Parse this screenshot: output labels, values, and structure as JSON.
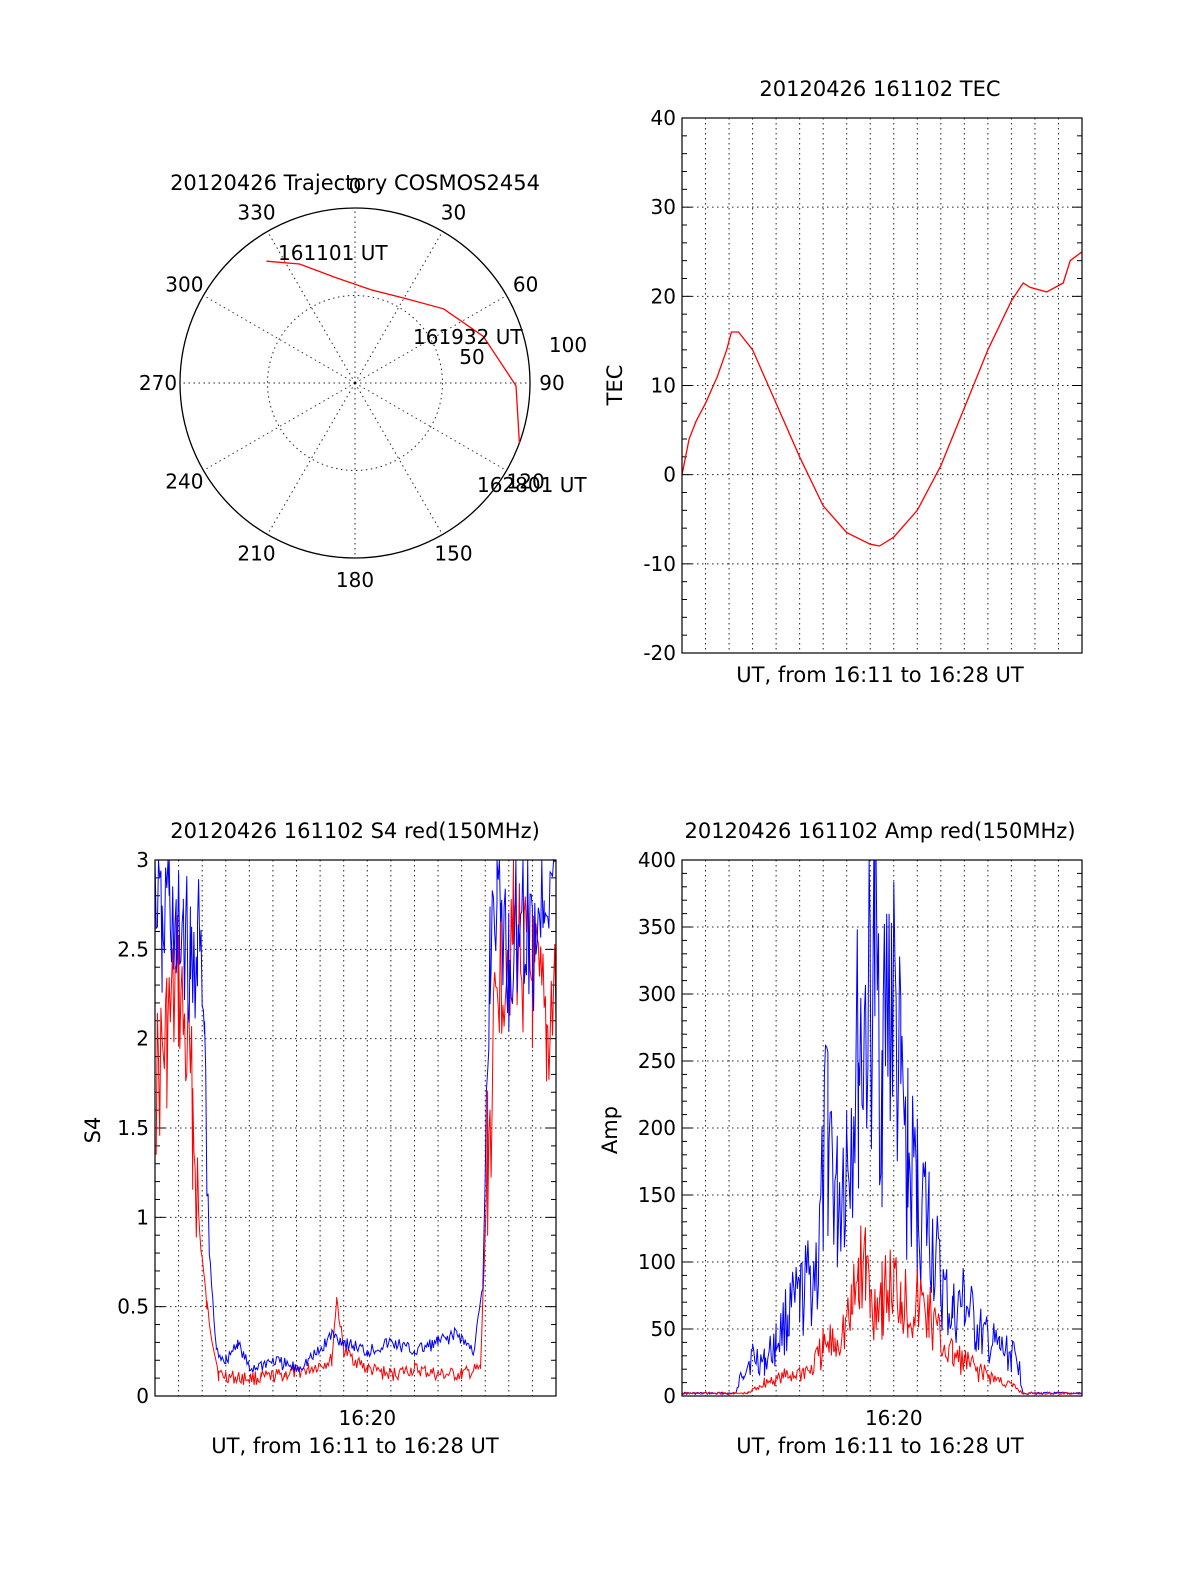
{
  "chart_data": [
    {
      "type": "polar",
      "title": "20120426 Trajectory COSMOS2454",
      "azimuth_labels": [
        "0",
        "30",
        "60",
        "90",
        "120",
        "150",
        "180",
        "210",
        "240",
        "270",
        "300",
        "330"
      ],
      "radial_max": 100,
      "radial_tick_labels": [
        "50",
        "100"
      ],
      "series": [
        {
          "color": "#ff0000",
          "points_az_zenith": [
            [
              -36,
              86
            ],
            [
              -25,
              75
            ],
            [
              -10,
              61
            ],
            [
              10,
              54
            ],
            [
              30,
              56
            ],
            [
              50,
              66
            ],
            [
              70,
              78
            ],
            [
              91,
              92
            ],
            [
              110,
              100
            ]
          ]
        }
      ],
      "annotations": [
        "161101 UT",
        "161932 UT",
        "162801 UT"
      ]
    },
    {
      "type": "line",
      "title": "20120426 161102 TEC",
      "xlabel": "UT, from 16:11 to 16:28 UT",
      "ylabel": "TEC",
      "xlim": [
        0,
        17
      ],
      "ylim": [
        -20,
        40
      ],
      "ytick_labels": [
        "-20",
        "-10",
        "0",
        "10",
        "20",
        "30",
        "40"
      ],
      "grid": true,
      "series": [
        {
          "color": "#ff0000",
          "x": [
            0,
            0.3,
            0.6,
            1.0,
            1.5,
            1.9,
            2.1,
            2.4,
            3.0,
            4.0,
            5.0,
            6.0,
            7.0,
            8.0,
            8.4,
            9.0,
            10.0,
            11.0,
            12.0,
            13.0,
            14.0,
            14.5,
            14.8,
            15.5,
            16.2,
            16.5,
            17.0
          ],
          "y": [
            0,
            4,
            6,
            8,
            11,
            14,
            16,
            16,
            14,
            8,
            2,
            -3.5,
            -6.5,
            -7.8,
            -8,
            -7,
            -4,
            1,
            7.5,
            14,
            19.5,
            21.5,
            21,
            20.5,
            21.5,
            24,
            25
          ]
        }
      ]
    },
    {
      "type": "line",
      "title": "20120426 161102 S4 red(150MHz)",
      "xlabel": "UT, from 16:11 to 16:28 UT",
      "ylabel": "S4",
      "xlim": [
        0,
        17
      ],
      "ylim": [
        0,
        3
      ],
      "xtick_labels": [
        "16:20"
      ],
      "ytick_labels": [
        "0",
        "0.5",
        "1",
        "1.5",
        "2",
        "2.5",
        "3"
      ],
      "grid": true,
      "series": [
        {
          "color": "#ff0000",
          "x": [
            0,
            0.5,
            1.0,
            1.6,
            1.9,
            2.2,
            2.7,
            3.5,
            4.5,
            5.5,
            6.5,
            7.5,
            7.7,
            8.0,
            9.0,
            10.0,
            11.0,
            12.0,
            13.0,
            13.8,
            14.1,
            14.6,
            15.2,
            16.0,
            16.6,
            17.0
          ],
          "y": [
            1.7,
            2.0,
            2.3,
            1.6,
            0.9,
            0.5,
            0.12,
            0.1,
            0.1,
            0.12,
            0.15,
            0.2,
            0.55,
            0.25,
            0.15,
            0.12,
            0.15,
            0.12,
            0.12,
            0.15,
            1.3,
            2.4,
            2.6,
            2.3,
            2.0,
            2.3
          ]
        },
        {
          "color": "#0000ff",
          "x": [
            0,
            0.3,
            0.6,
            0.9,
            1.2,
            1.5,
            1.8,
            2.1,
            2.3,
            2.6,
            3.0,
            3.5,
            4.0,
            5.0,
            6.0,
            7.0,
            7.5,
            8.0,
            9.0,
            10.0,
            11.0,
            12.0,
            12.8,
            13.5,
            13.9,
            14.2,
            14.5,
            15.0,
            15.5,
            16.0,
            16.5,
            17.0
          ],
          "y": [
            3,
            2.5,
            2.9,
            2.4,
            2.7,
            2.3,
            2.6,
            2.0,
            0.8,
            0.25,
            0.2,
            0.3,
            0.15,
            0.2,
            0.15,
            0.25,
            0.35,
            0.3,
            0.25,
            0.3,
            0.25,
            0.3,
            0.35,
            0.25,
            0.6,
            2.5,
            2.9,
            2.4,
            2.8,
            2.5,
            2.9,
            3
          ]
        }
      ]
    },
    {
      "type": "area",
      "title": "20120426 161102 Amp red(150MHz)",
      "xlabel": "UT, from 16:11 to 16:28 UT",
      "ylabel": "Amp",
      "xlim": [
        0,
        17
      ],
      "ylim": [
        0,
        400
      ],
      "xtick_labels": [
        "16:20"
      ],
      "ytick_labels": [
        "0",
        "50",
        "100",
        "150",
        "200",
        "250",
        "300",
        "350",
        "400"
      ],
      "grid": true,
      "series": [
        {
          "color": "#0000ff",
          "x": [
            0,
            2.3,
            2.6,
            3.0,
            3.5,
            4.0,
            4.5,
            5.0,
            5.8,
            6.2,
            6.6,
            7.0,
            7.5,
            8.0,
            8.2,
            8.5,
            8.9,
            9.3,
            9.6,
            10.0,
            10.5,
            11.0,
            11.5,
            12.0,
            12.5,
            13.0,
            13.5,
            14.0,
            14.3,
            14.5,
            17.0
          ],
          "y": [
            2,
            2,
            20,
            30,
            25,
            40,
            60,
            70,
            100,
            210,
            140,
            190,
            250,
            300,
            320,
            250,
            310,
            220,
            170,
            150,
            130,
            80,
            60,
            70,
            50,
            40,
            35,
            30,
            25,
            2,
            2
          ]
        },
        {
          "color": "#ff0000",
          "x": [
            0,
            2.8,
            3.5,
            4.5,
            5.5,
            6.0,
            6.5,
            7.2,
            7.5,
            7.8,
            8.0,
            8.5,
            9.0,
            9.3,
            9.6,
            10.0,
            10.5,
            11.0,
            11.5,
            12.0,
            13.0,
            14.0,
            14.5,
            17.0
          ],
          "y": [
            2,
            2,
            10,
            15,
            20,
            35,
            40,
            60,
            90,
            100,
            70,
            75,
            80,
            80,
            65,
            70,
            60,
            40,
            30,
            25,
            15,
            8,
            2,
            2
          ]
        }
      ]
    }
  ]
}
